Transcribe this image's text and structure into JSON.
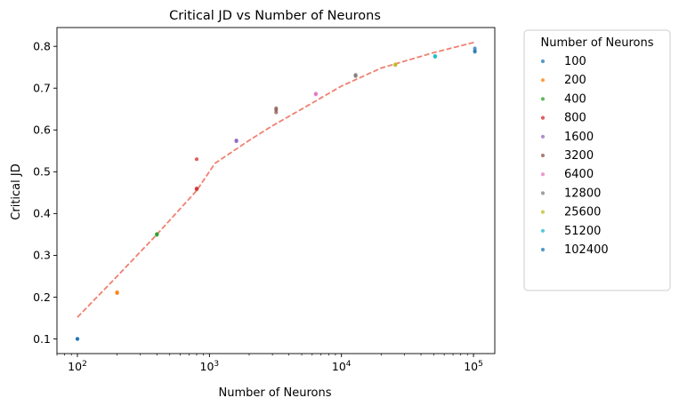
{
  "chart_data": {
    "type": "scatter",
    "title": "Critical JD vs Number of Neurons",
    "xlabel": "Number of Neurons",
    "ylabel": "Critical JD",
    "xscale": "log",
    "xlim": [
      70,
      145000
    ],
    "ylim": [
      0.065,
      0.845
    ],
    "x_ticks": [
      {
        "value": 100,
        "base": "10",
        "exp": "2"
      },
      {
        "value": 1000,
        "base": "10",
        "exp": "3"
      },
      {
        "value": 10000,
        "base": "10",
        "exp": "4"
      },
      {
        "value": 100000,
        "base": "10",
        "exp": "5"
      }
    ],
    "y_ticks": [
      {
        "value": 0.1,
        "label": "0.1"
      },
      {
        "value": 0.2,
        "label": "0.2"
      },
      {
        "value": 0.3,
        "label": "0.3"
      },
      {
        "value": 0.4,
        "label": "0.4"
      },
      {
        "value": 0.5,
        "label": "0.5"
      },
      {
        "value": 0.6,
        "label": "0.6"
      },
      {
        "value": 0.7,
        "label": "0.7"
      },
      {
        "value": 0.8,
        "label": "0.8"
      }
    ],
    "grid": false,
    "legend": {
      "title": "Number of Neurons",
      "placement": "outside-right-top"
    },
    "series": [
      {
        "name": "100",
        "color": "#1f77b4",
        "points": [
          [
            100,
            0.1
          ],
          [
            100,
            0.1
          ],
          [
            100,
            0.1
          ]
        ]
      },
      {
        "name": "200",
        "color": "#ff7f0e",
        "points": [
          [
            200,
            0.21
          ],
          [
            200,
            0.212
          ],
          [
            200,
            0.21
          ]
        ]
      },
      {
        "name": "400",
        "color": "#2ca02c",
        "points": [
          [
            400,
            0.35
          ],
          [
            400,
            0.349
          ],
          [
            400,
            0.351
          ]
        ]
      },
      {
        "name": "800",
        "color": "#d62728",
        "points": [
          [
            800,
            0.53
          ],
          [
            800,
            0.46
          ],
          [
            800,
            0.458
          ]
        ]
      },
      {
        "name": "1600",
        "color": "#9467bd",
        "points": [
          [
            1600,
            0.574
          ],
          [
            1600,
            0.573
          ],
          [
            1600,
            0.575
          ]
        ]
      },
      {
        "name": "3200",
        "color": "#8c564b",
        "points": [
          [
            3200,
            0.652
          ],
          [
            3200,
            0.642
          ],
          [
            3200,
            0.648
          ]
        ]
      },
      {
        "name": "6400",
        "color": "#e377c2",
        "points": [
          [
            6400,
            0.686
          ],
          [
            6400,
            0.687
          ],
          [
            6400,
            0.685
          ]
        ]
      },
      {
        "name": "12800",
        "color": "#7f7f7f",
        "points": [
          [
            12800,
            0.73
          ],
          [
            12800,
            0.732
          ],
          [
            12800,
            0.729
          ]
        ]
      },
      {
        "name": "25600",
        "color": "#bcbd22",
        "points": [
          [
            25600,
            0.756
          ],
          [
            25600,
            0.757
          ],
          [
            25600,
            0.755
          ]
        ]
      },
      {
        "name": "51200",
        "color": "#17becf",
        "points": [
          [
            51200,
            0.777
          ],
          [
            51200,
            0.775
          ],
          [
            51200,
            0.776
          ]
        ]
      },
      {
        "name": "102400",
        "color": "#1f77b4",
        "points": [
          [
            102400,
            0.795
          ],
          [
            102400,
            0.789
          ],
          [
            102400,
            0.787
          ]
        ]
      }
    ],
    "fit_line": {
      "color": "#f08070",
      "style": "dashed",
      "points": [
        [
          100,
          0.152
        ],
        [
          200,
          0.25
        ],
        [
          400,
          0.35
        ],
        [
          800,
          0.455
        ],
        [
          1100,
          0.52
        ],
        [
          2000,
          0.575
        ],
        [
          3000,
          0.61
        ],
        [
          5000,
          0.65
        ],
        [
          10000,
          0.705
        ],
        [
          20000,
          0.748
        ],
        [
          50000,
          0.785
        ],
        [
          102400,
          0.81
        ]
      ]
    }
  }
}
